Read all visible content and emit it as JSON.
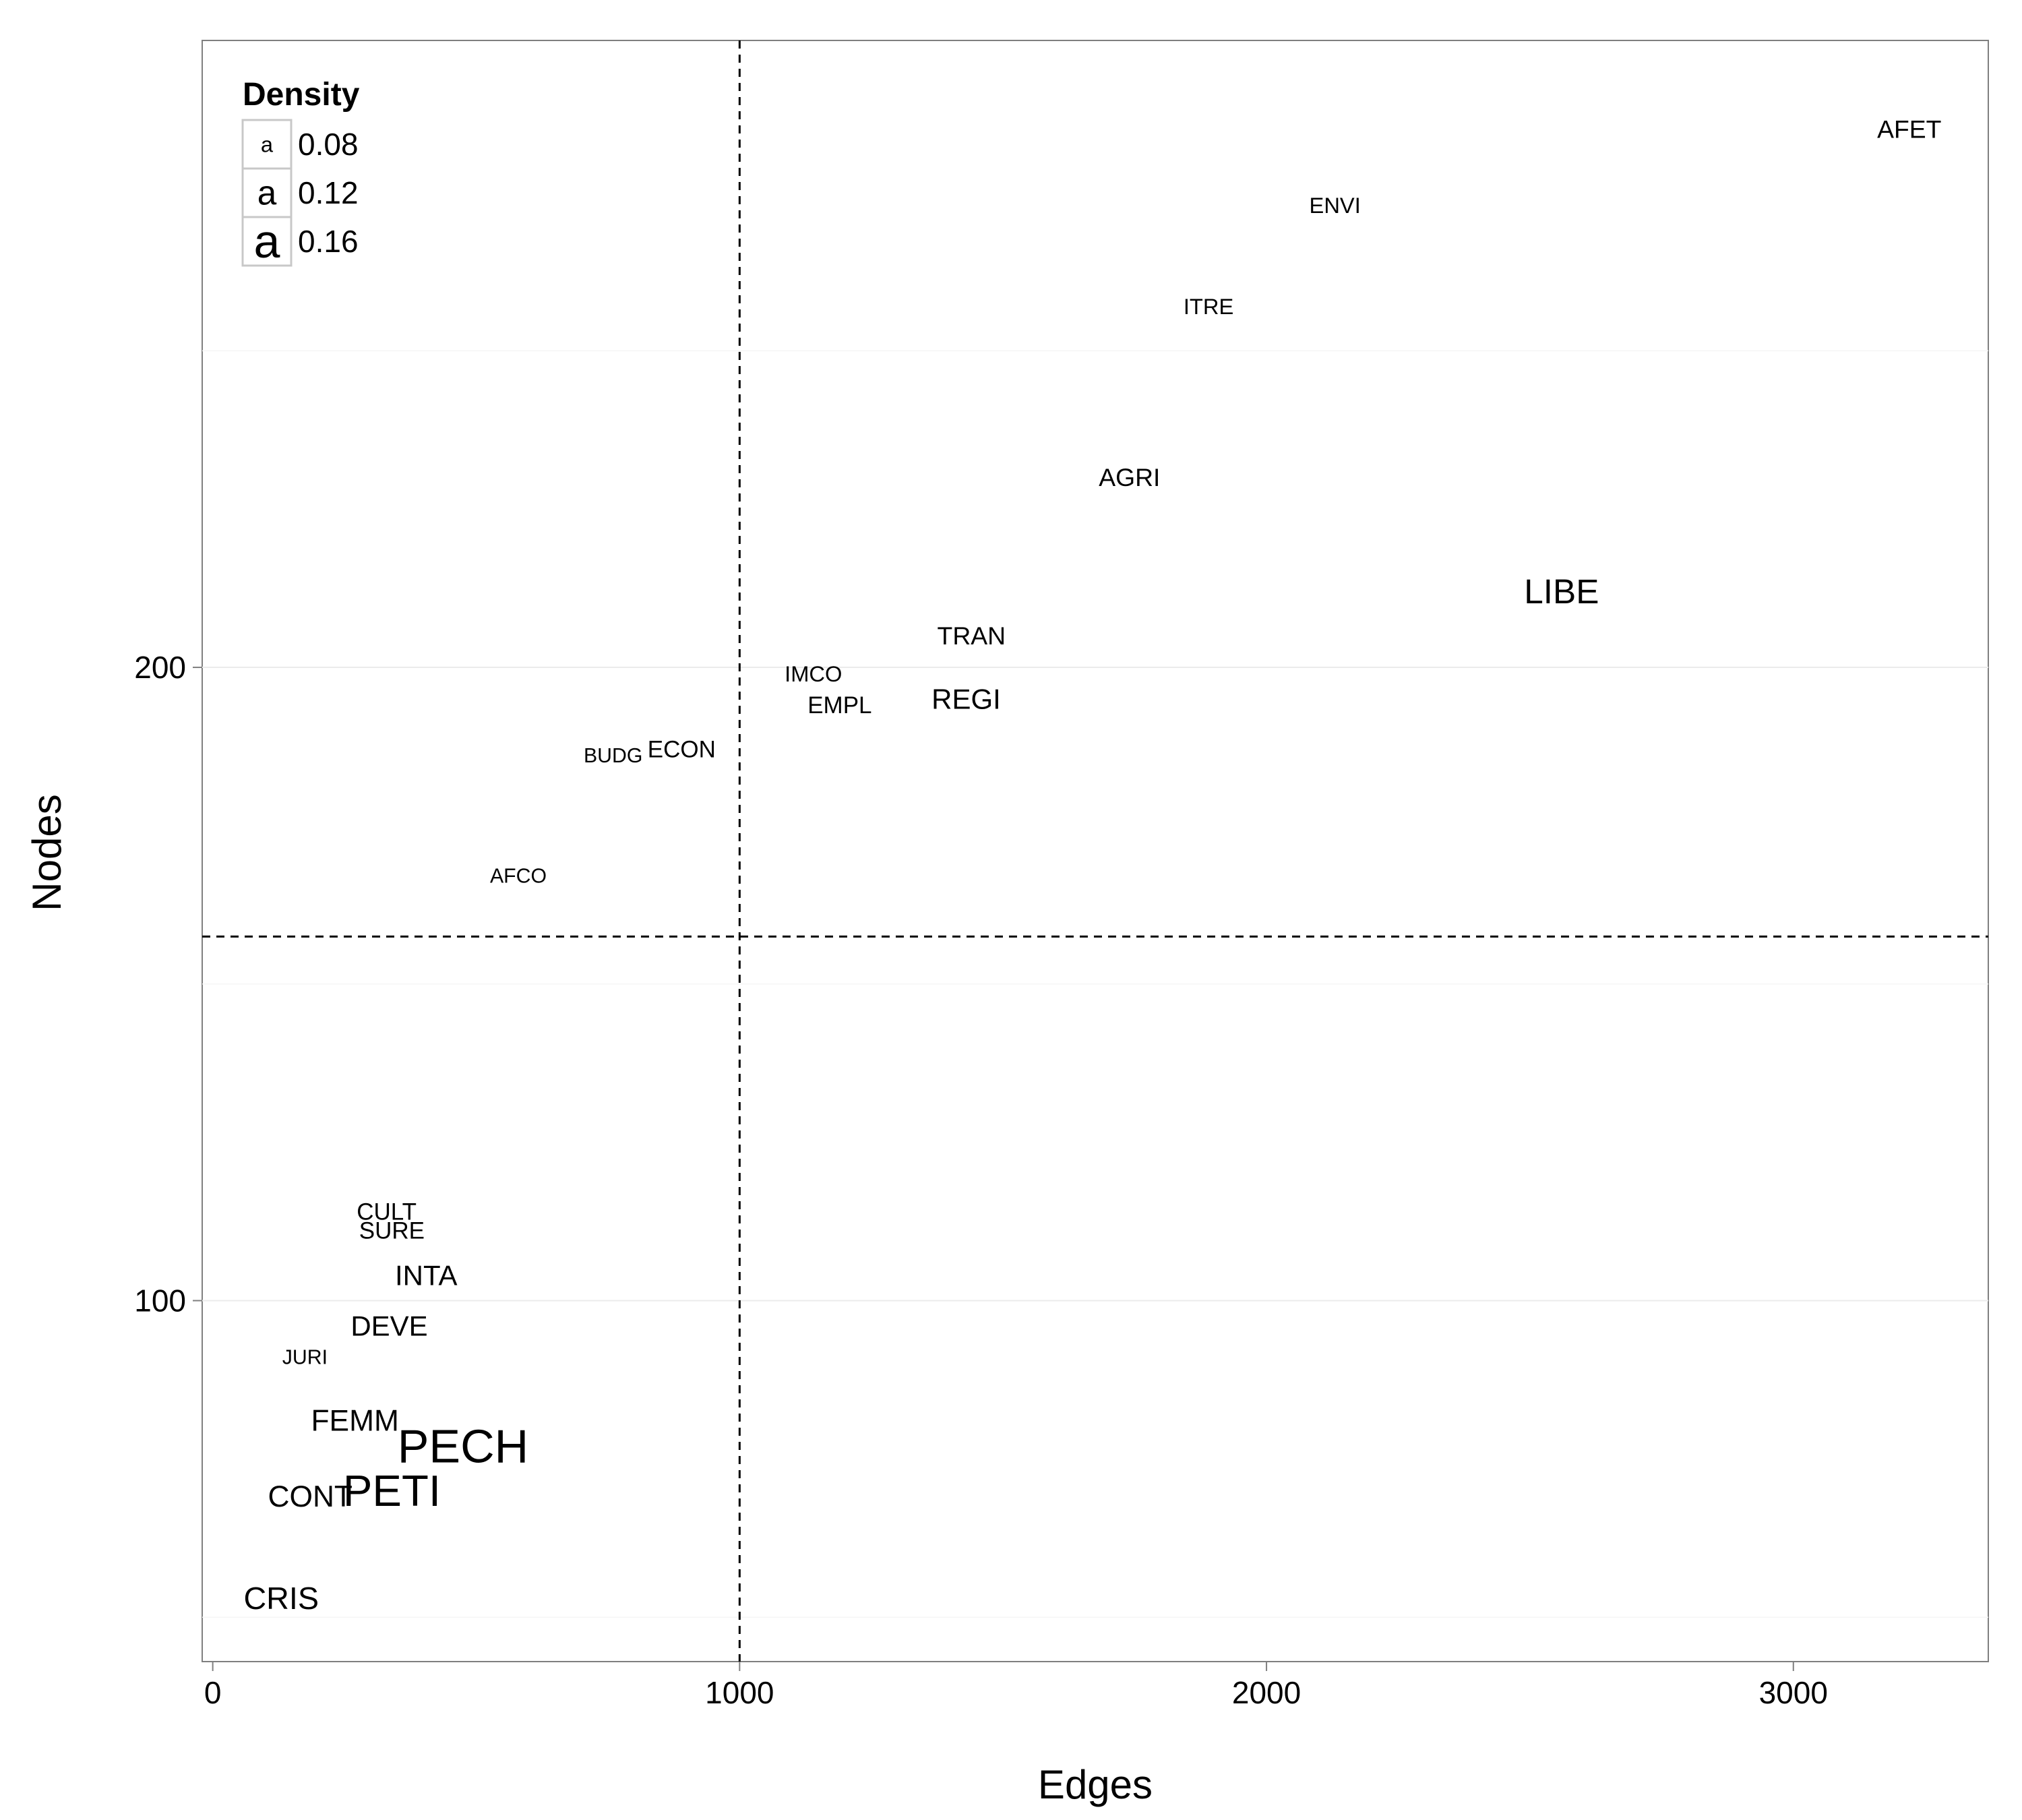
{
  "chart_data": {
    "type": "scatter",
    "title": "",
    "xlabel": "Edges",
    "ylabel": "Nodes",
    "xlim": [
      -20,
      3370
    ],
    "ylim": [
      43,
      299
    ],
    "xticks": [
      0,
      1000,
      2000,
      3000
    ],
    "yticks": [
      100,
      200
    ],
    "xtick_labels": [
      "0",
      "1000",
      "2000",
      "3000"
    ],
    "ytick_labels": [
      "100",
      "200"
    ],
    "grid": true,
    "reference_lines": {
      "x": 1000,
      "y": 157.5
    },
    "legend": {
      "title": "Density",
      "position": "top-left",
      "key_glyph": "a",
      "entries": [
        {
          "label": "0.08",
          "value": 0.08
        },
        {
          "label": "0.12",
          "value": 0.12
        },
        {
          "label": "0.16",
          "value": 0.16
        }
      ]
    },
    "points": [
      {
        "label": "AFET",
        "x": 3220,
        "y": 285,
        "density": 0.09
      },
      {
        "label": "ENVI",
        "x": 2130,
        "y": 273,
        "density": 0.08
      },
      {
        "label": "ITRE",
        "x": 1890,
        "y": 257,
        "density": 0.08
      },
      {
        "label": "AGRI",
        "x": 1740,
        "y": 230,
        "density": 0.09
      },
      {
        "label": "LIBE",
        "x": 2560,
        "y": 212,
        "density": 0.12
      },
      {
        "label": "TRAN",
        "x": 1440,
        "y": 205,
        "density": 0.09
      },
      {
        "label": "REGI",
        "x": 1430,
        "y": 195,
        "density": 0.1
      },
      {
        "label": "IMCO",
        "x": 1140,
        "y": 199,
        "density": 0.08
      },
      {
        "label": "EMPL",
        "x": 1190,
        "y": 194,
        "density": 0.085
      },
      {
        "label": "BUDG",
        "x": 760,
        "y": 186,
        "density": 0.075
      },
      {
        "label": "ECON",
        "x": 890,
        "y": 187,
        "density": 0.085
      },
      {
        "label": "AFCO",
        "x": 580,
        "y": 167,
        "density": 0.075
      },
      {
        "label": "CULT",
        "x": 330,
        "y": 114,
        "density": 0.085
      },
      {
        "label": "SURE",
        "x": 340,
        "y": 111,
        "density": 0.085
      },
      {
        "label": "INTA",
        "x": 405,
        "y": 104,
        "density": 0.1
      },
      {
        "label": "DEVE",
        "x": 335,
        "y": 96,
        "density": 0.1
      },
      {
        "label": "JURI",
        "x": 175,
        "y": 91,
        "density": 0.075
      },
      {
        "label": "FEMM",
        "x": 270,
        "y": 81,
        "density": 0.105
      },
      {
        "label": "PECH",
        "x": 475,
        "y": 77,
        "density": 0.16
      },
      {
        "label": "PETI",
        "x": 340,
        "y": 70,
        "density": 0.15
      },
      {
        "label": "CONT",
        "x": 185,
        "y": 69,
        "density": 0.105
      },
      {
        "label": "CRIS",
        "x": 130,
        "y": 53,
        "density": 0.11
      }
    ]
  }
}
